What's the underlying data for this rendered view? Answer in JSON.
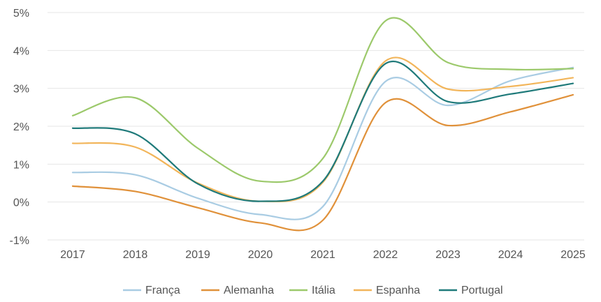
{
  "chart_data": {
    "type": "line",
    "x": [
      "2017",
      "2018",
      "2019",
      "2020",
      "2021",
      "2022",
      "2023",
      "2024",
      "2025"
    ],
    "y_ticks": [
      "5%",
      "4%",
      "3%",
      "2%",
      "1%",
      "0%",
      "-1%"
    ],
    "ylim": [
      -1,
      5
    ],
    "grid": true,
    "legend_position": "bottom",
    "series": [
      {
        "name": "França",
        "color": "#a9cce3",
        "values": [
          0.78,
          0.72,
          0.1,
          -0.33,
          -0.12,
          3.18,
          2.55,
          3.2,
          3.55
        ]
      },
      {
        "name": "Alemanha",
        "color": "#e0913a",
        "values": [
          0.42,
          0.28,
          -0.15,
          -0.55,
          -0.48,
          2.62,
          2.02,
          2.38,
          2.83
        ]
      },
      {
        "name": "Itália",
        "color": "#9cc96b",
        "values": [
          2.28,
          2.75,
          1.42,
          0.55,
          1.15,
          4.78,
          3.68,
          3.5,
          3.52
        ]
      },
      {
        "name": "Espanha",
        "color": "#f2b55a",
        "values": [
          1.55,
          1.45,
          0.5,
          0.02,
          0.52,
          3.72,
          2.98,
          3.05,
          3.28
        ]
      },
      {
        "name": "Portugal",
        "color": "#1f7a7a",
        "values": [
          1.95,
          1.8,
          0.48,
          0.02,
          0.55,
          3.65,
          2.65,
          2.85,
          3.13
        ]
      }
    ]
  }
}
